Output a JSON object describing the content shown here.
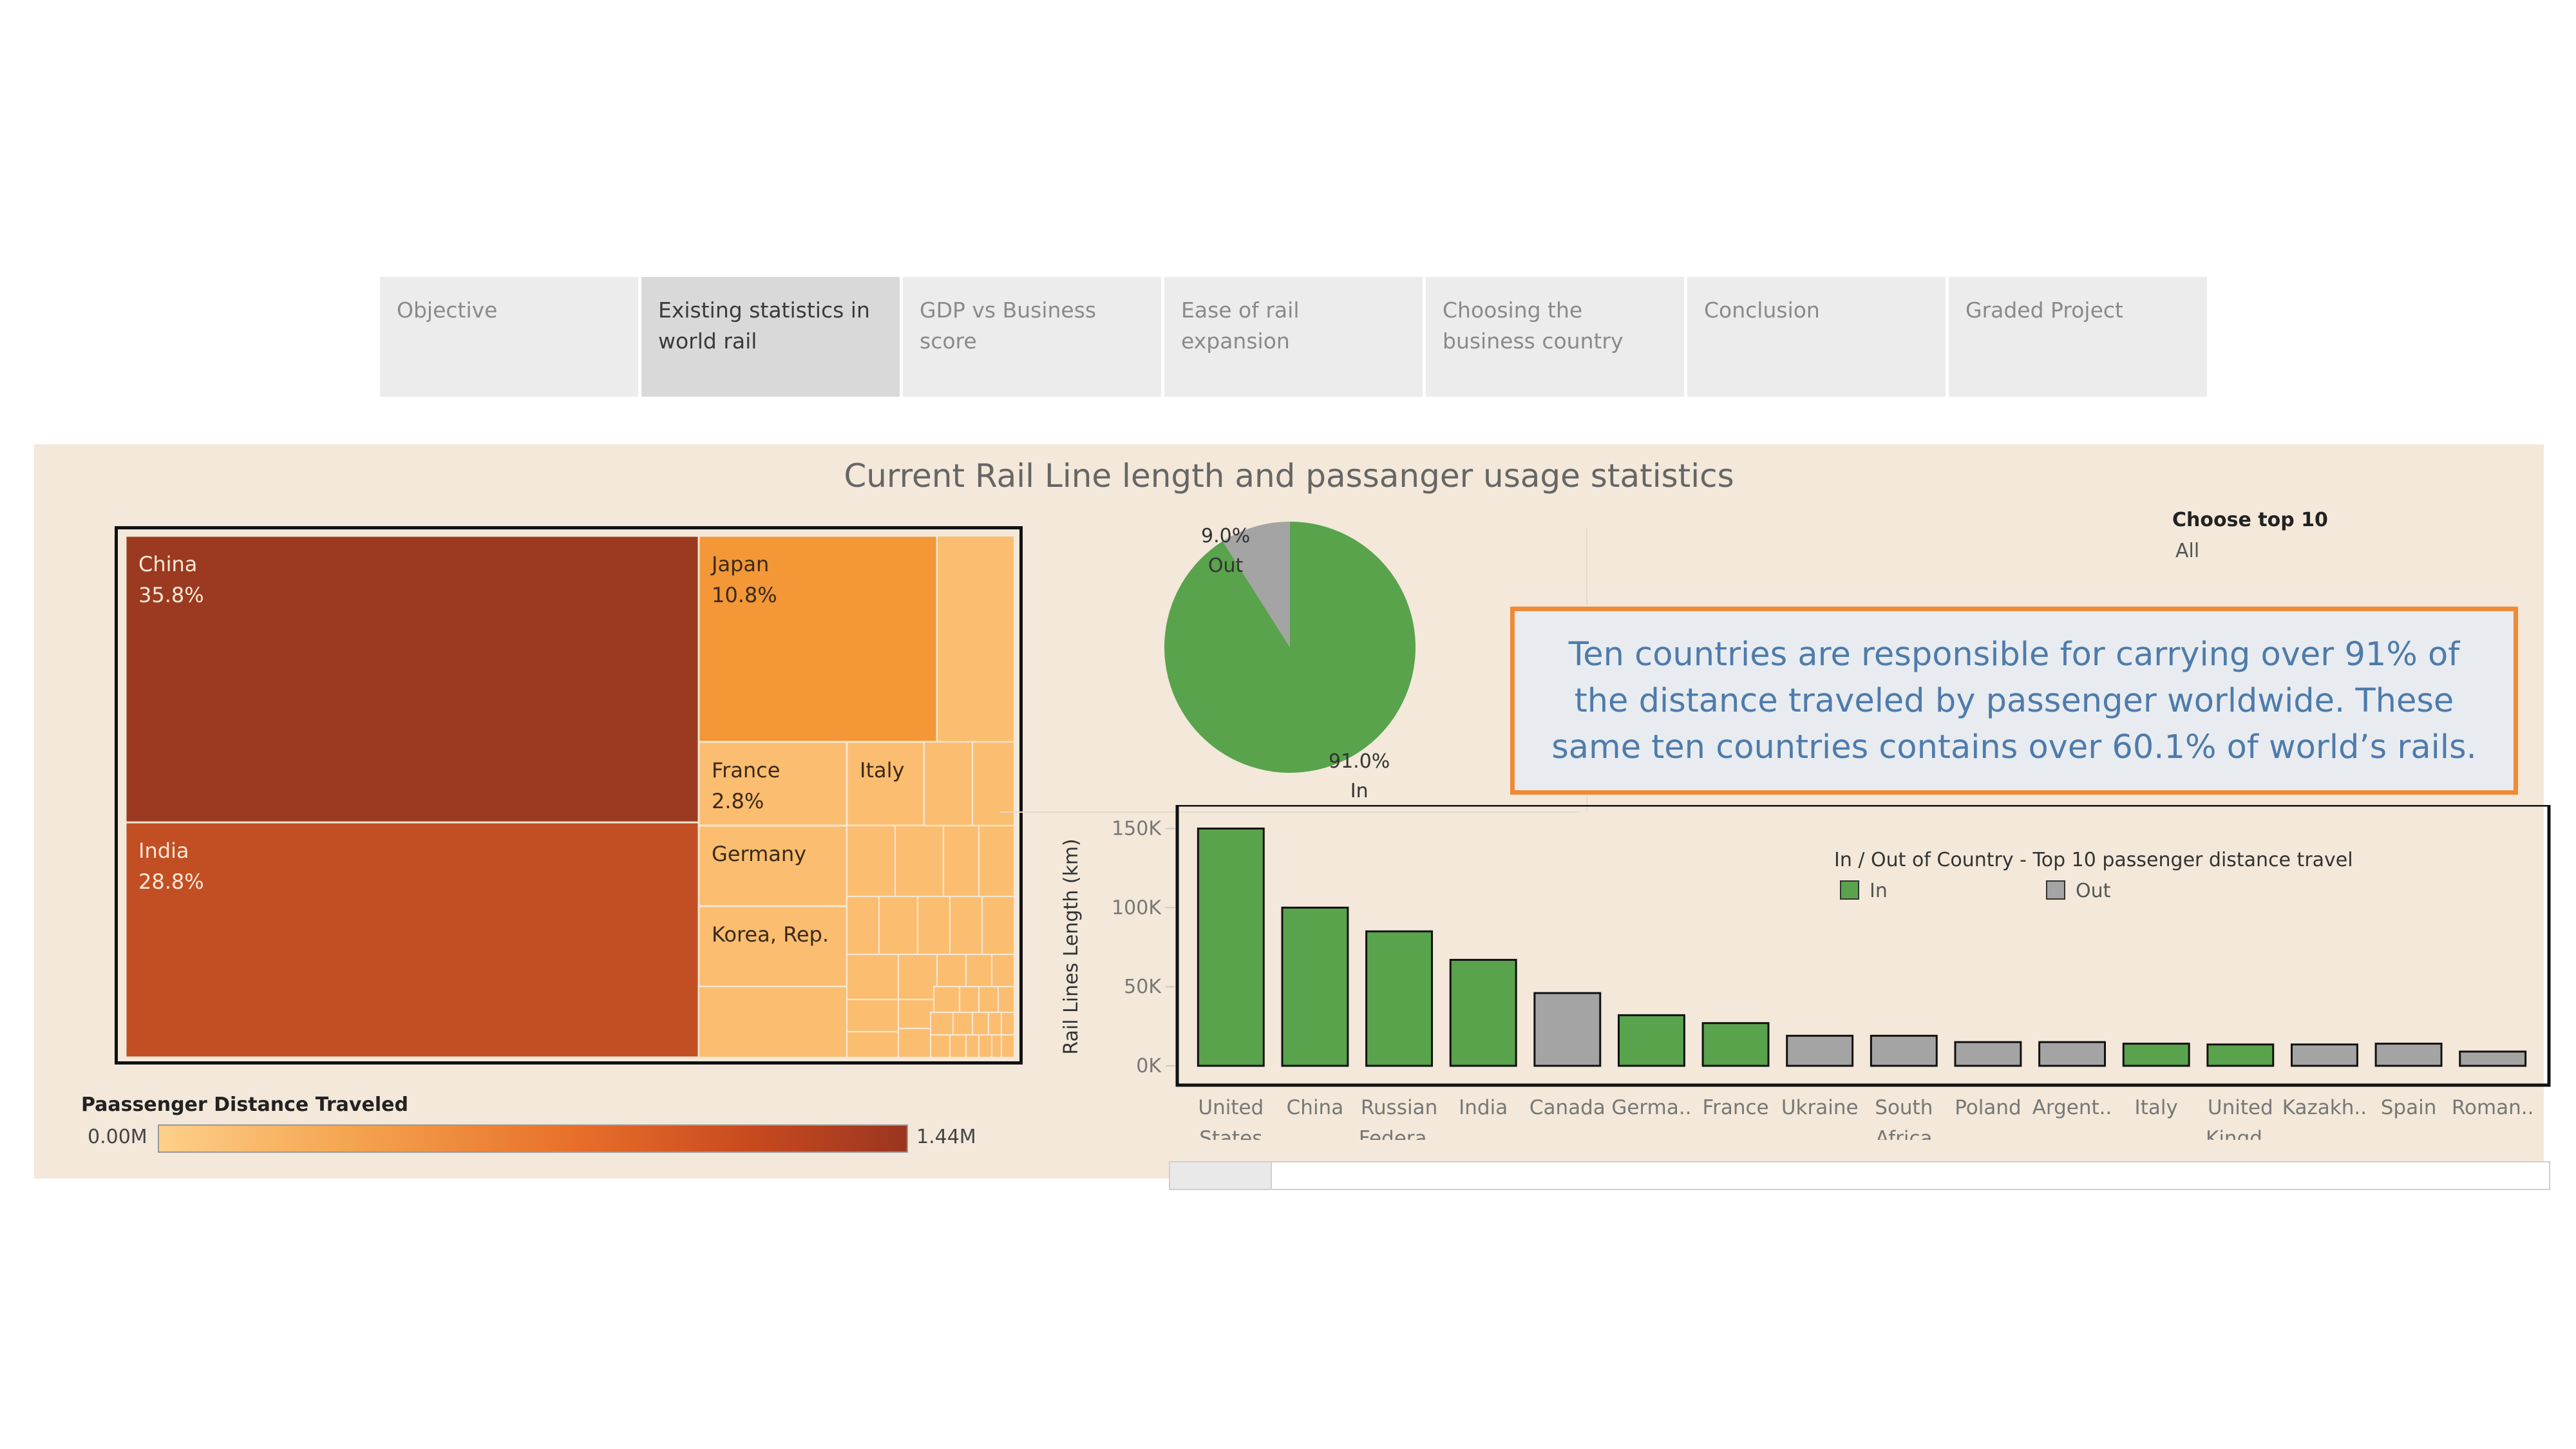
{
  "tabs": [
    {
      "label": "Objective",
      "active": false
    },
    {
      "label": "Existing statistics in world rail",
      "active": true
    },
    {
      "label": "GDP vs Business score",
      "active": false
    },
    {
      "label": "Ease of rail expansion",
      "active": false
    },
    {
      "label": "Choosing the business country",
      "active": false
    },
    {
      "label": "Conclusion",
      "active": false
    },
    {
      "label": "Graded Project",
      "active": false
    }
  ],
  "dashboard": {
    "title": "Current Rail Line length and passanger usage statistics",
    "callout": "Ten countries are responsible for carrying over 91% of the distance traveled by passenger worldwide. These same ten countries contains over 60.1% of world’s rails.",
    "filter": {
      "title": "Choose top 10",
      "value": "All"
    },
    "legend": {
      "title": "Paassenger Distance Traveled",
      "min": "0.00M",
      "max": "1.44M"
    }
  },
  "chart_data": [
    {
      "type": "treemap",
      "measure": "Paassenger Distance Traveled",
      "color_range": [
        "#fdd08a",
        "#9b3520"
      ],
      "items": [
        {
          "name": "China",
          "label": "35.8%",
          "value": 35.8,
          "color": "#9b3a20"
        },
        {
          "name": "India",
          "label": "28.8%",
          "value": 28.8,
          "color": "#c14f23"
        },
        {
          "name": "Japan",
          "label": "10.8%",
          "value": 10.8,
          "color": "#f39737"
        },
        {
          "name": "France",
          "label": "2.8%",
          "value": 2.8,
          "color": "#fbbd6f"
        },
        {
          "name": "Italy",
          "label": "",
          "color": "#fbbd6f"
        },
        {
          "name": "Germany",
          "label": "",
          "color": "#fbbd6f"
        },
        {
          "name": "Korea, Rep.",
          "label": "",
          "color": "#fbbd6f"
        }
      ]
    },
    {
      "type": "pie",
      "slices": [
        {
          "name": "In",
          "label": "91.0%",
          "value": 91.0,
          "color": "#59a34c"
        },
        {
          "name": "Out",
          "label": "9.0%",
          "value": 9.0,
          "color": "#a4a4a4"
        }
      ]
    },
    {
      "type": "bar",
      "title": "In / Out of Country - Top 10 passenger distance travel",
      "ylabel": "Rail Lines Length (km)",
      "ylim": [
        0,
        160000
      ],
      "yticks": [
        0,
        50000,
        100000,
        150000
      ],
      "ytick_labels": [
        "0K",
        "50K",
        "100K",
        "150K"
      ],
      "legend": [
        {
          "name": "In",
          "color": "#59a34c"
        },
        {
          "name": "Out",
          "color": "#a4a4a4"
        }
      ],
      "bars": [
        {
          "label": [
            "United",
            "States"
          ],
          "value": 150000,
          "group": "In"
        },
        {
          "label": [
            "China"
          ],
          "value": 100000,
          "group": "In"
        },
        {
          "label": [
            "Russian",
            "Federa.."
          ],
          "value": 85000,
          "group": "In"
        },
        {
          "label": [
            "India"
          ],
          "value": 67000,
          "group": "In"
        },
        {
          "label": [
            "Canada"
          ],
          "value": 46000,
          "group": "Out"
        },
        {
          "label": [
            "Germa.."
          ],
          "value": 32000,
          "group": "In"
        },
        {
          "label": [
            "France"
          ],
          "value": 27000,
          "group": "In"
        },
        {
          "label": [
            "Ukraine"
          ],
          "value": 19000,
          "group": "Out"
        },
        {
          "label": [
            "South",
            "Africa"
          ],
          "value": 19000,
          "group": "Out"
        },
        {
          "label": [
            "Poland"
          ],
          "value": 15000,
          "group": "Out"
        },
        {
          "label": [
            "Argent.."
          ],
          "value": 15000,
          "group": "Out"
        },
        {
          "label": [
            "Italy"
          ],
          "value": 14000,
          "group": "In"
        },
        {
          "label": [
            "United",
            "Kingd.."
          ],
          "value": 13500,
          "group": "In"
        },
        {
          "label": [
            "Kazakh.."
          ],
          "value": 13500,
          "group": "Out"
        },
        {
          "label": [
            "Spain"
          ],
          "value": 14000,
          "group": "Out"
        },
        {
          "label": [
            "Roman.."
          ],
          "value": 9000,
          "group": "Out"
        }
      ]
    }
  ]
}
